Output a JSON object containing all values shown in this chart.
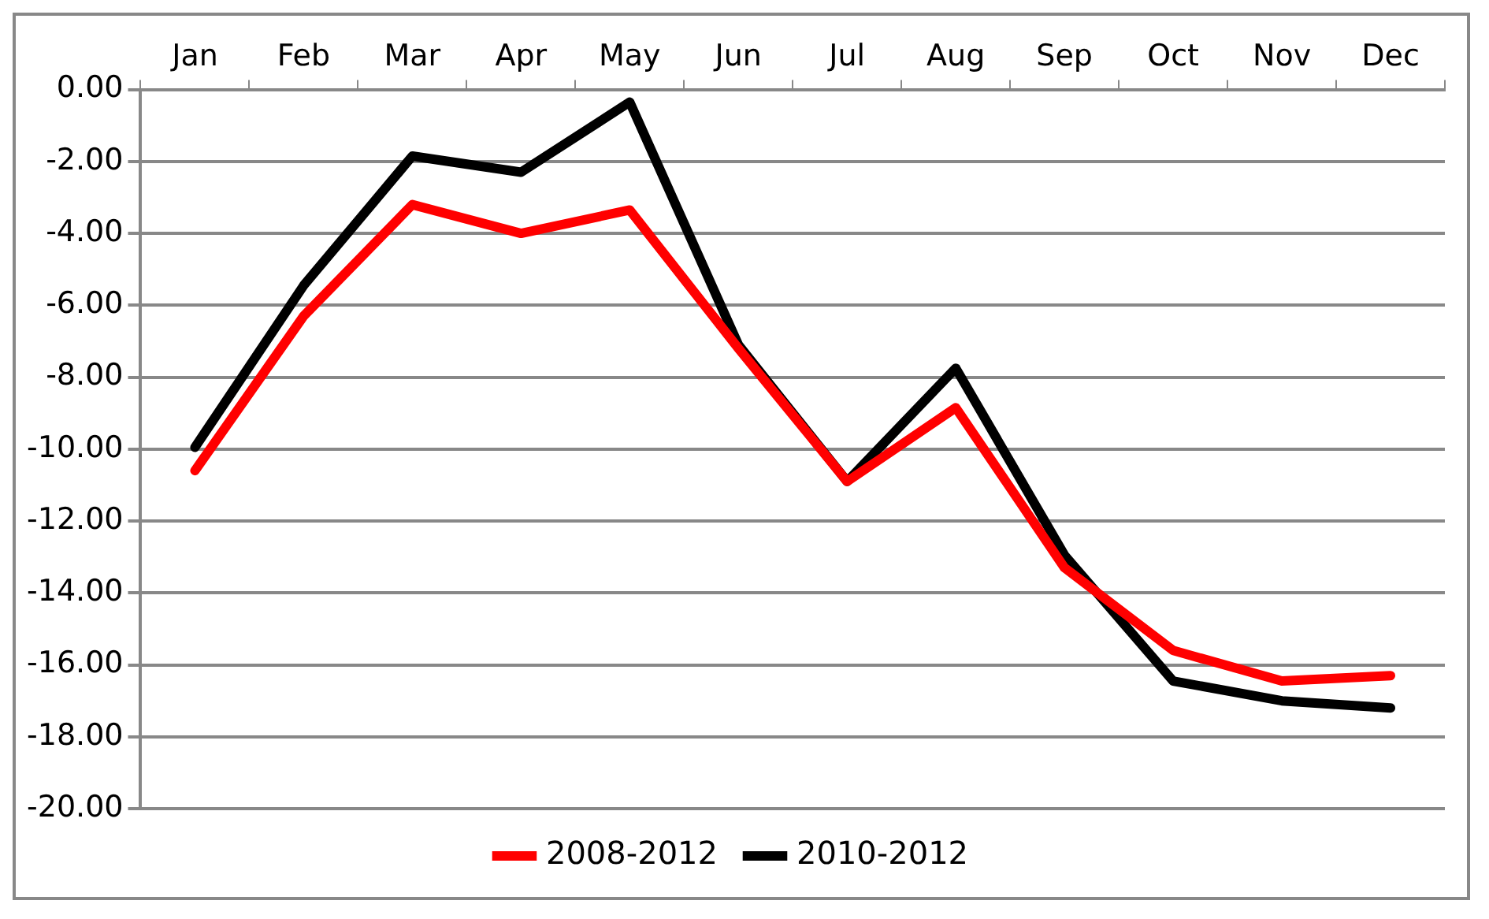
{
  "chart_data": {
    "type": "line",
    "categories": [
      "Jan",
      "Feb",
      "Mar",
      "Apr",
      "May",
      "Jun",
      "Jul",
      "Aug",
      "Sep",
      "Oct",
      "Nov",
      "Dec"
    ],
    "series": [
      {
        "name": "2008-2012",
        "color": "#ff0000",
        "values": [
          -10.6,
          -6.3,
          -3.2,
          -4.0,
          -3.35,
          -7.2,
          -10.9,
          -8.85,
          -13.3,
          -15.6,
          -16.45,
          -16.3
        ]
      },
      {
        "name": "2010-2012",
        "color": "#000000",
        "values": [
          -9.95,
          -5.45,
          -1.85,
          -2.3,
          -0.35,
          -7.1,
          -10.9,
          -7.75,
          -12.95,
          -16.45,
          -17.0,
          -17.2
        ]
      }
    ],
    "ylim": [
      -20,
      0
    ],
    "yticks": [
      {
        "value": 0,
        "label": "0.00"
      },
      {
        "value": -2,
        "label": "-2.00"
      },
      {
        "value": -4,
        "label": "-4.00"
      },
      {
        "value": -6,
        "label": "-6.00"
      },
      {
        "value": -8,
        "label": "-8.00"
      },
      {
        "value": -10,
        "label": "-10.00"
      },
      {
        "value": -12,
        "label": "-12.00"
      },
      {
        "value": -14,
        "label": "-14.00"
      },
      {
        "value": -16,
        "label": "-16.00"
      },
      {
        "value": -18,
        "label": "-18.00"
      },
      {
        "value": -20,
        "label": "-20.00"
      }
    ],
    "grid": "y",
    "legend": "bottom",
    "marker": "none",
    "line_style": "solid"
  }
}
